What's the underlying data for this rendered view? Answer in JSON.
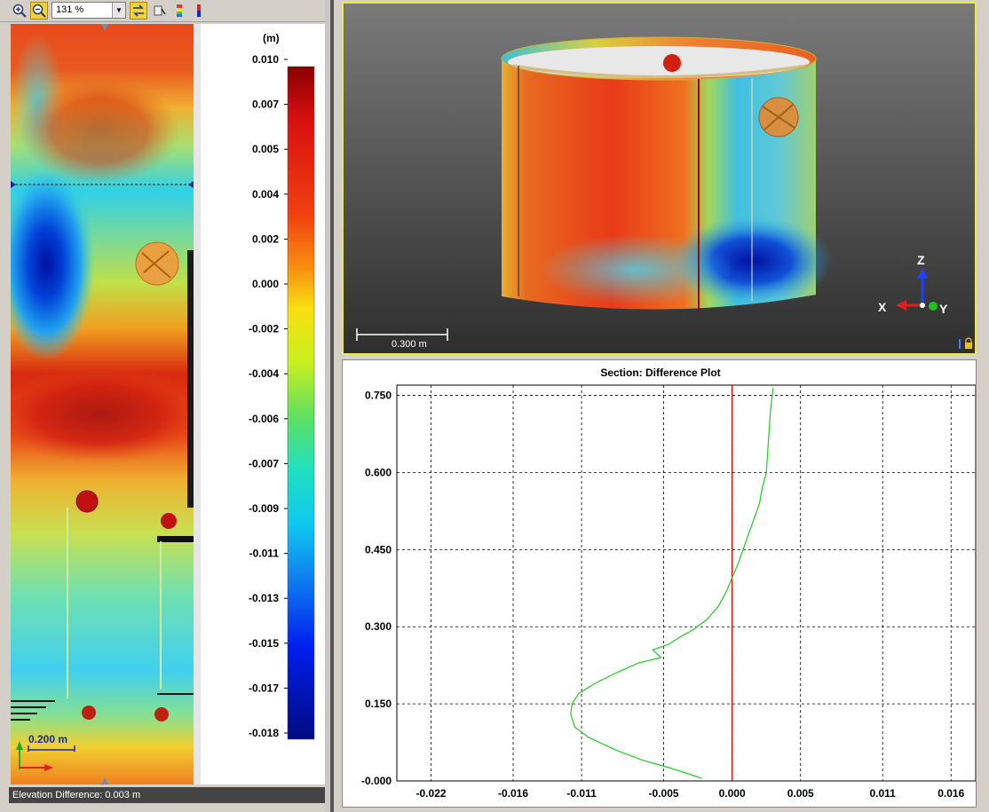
{
  "toolbar": {
    "zoom_in_icon": "zoom-in-icon",
    "zoom_out_icon": "zoom-out-icon",
    "zoom_value": "131 %",
    "sync_icon": "sync-views-icon",
    "profile_icon": "profile-tool-icon",
    "legend_icon": "color-legend-icon",
    "colorbar_icon": "colorbar-icon"
  },
  "map": {
    "scale_label": "0.200 m"
  },
  "legend": {
    "unit": "(m)",
    "ticks": [
      "0.010",
      "0.007",
      "0.005",
      "0.004",
      "0.002",
      "0.000",
      "-0.002",
      "-0.004",
      "-0.006",
      "-0.007",
      "-0.009",
      "-0.011",
      "-0.013",
      "-0.015",
      "-0.017",
      "-0.018"
    ]
  },
  "status": {
    "text": "Elevation Difference: 0.003 m"
  },
  "view3d": {
    "scale_label": "0.300 m",
    "axis_z": "Z",
    "axis_x": "X",
    "axis_y": "Y"
  },
  "chart_data": {
    "type": "line",
    "title": "Section: Difference Plot",
    "xlabel": "",
    "ylabel": "",
    "xlim": [
      -0.0245,
      0.0178
    ],
    "ylim": [
      0.0,
      0.77
    ],
    "x_ticks": [
      "-0.022",
      "-0.016",
      "-0.011",
      "-0.005",
      "0.000",
      "0.005",
      "0.011",
      "0.016"
    ],
    "y_ticks": [
      "0.750",
      "0.600",
      "0.450",
      "0.300",
      "0.150",
      "-0.000"
    ],
    "zero_line_color": "#cc0000",
    "series_color": "#22cc22",
    "grid": true,
    "series": [
      {
        "x": [
          -0.0022,
          -0.003,
          -0.0045,
          -0.0065,
          -0.0085,
          -0.0105,
          -0.0115,
          -0.0118,
          -0.0117,
          -0.0112,
          -0.01,
          -0.0085,
          -0.0068,
          -0.0052,
          -0.0058,
          -0.0047,
          -0.0038,
          -0.0028,
          -0.0018,
          -0.001,
          -0.0004,
          0.0,
          0.0004,
          0.0008,
          0.0012,
          0.0016,
          0.002,
          0.0022,
          0.0025,
          0.0026,
          0.0027,
          0.0028,
          0.003
        ],
        "y": [
          0.005,
          0.012,
          0.025,
          0.04,
          0.06,
          0.085,
          0.105,
          0.13,
          0.15,
          0.17,
          0.19,
          0.21,
          0.23,
          0.24,
          0.255,
          0.265,
          0.28,
          0.295,
          0.315,
          0.34,
          0.37,
          0.395,
          0.42,
          0.45,
          0.48,
          0.51,
          0.54,
          0.57,
          0.6,
          0.64,
          0.68,
          0.72,
          0.765
        ]
      }
    ]
  }
}
